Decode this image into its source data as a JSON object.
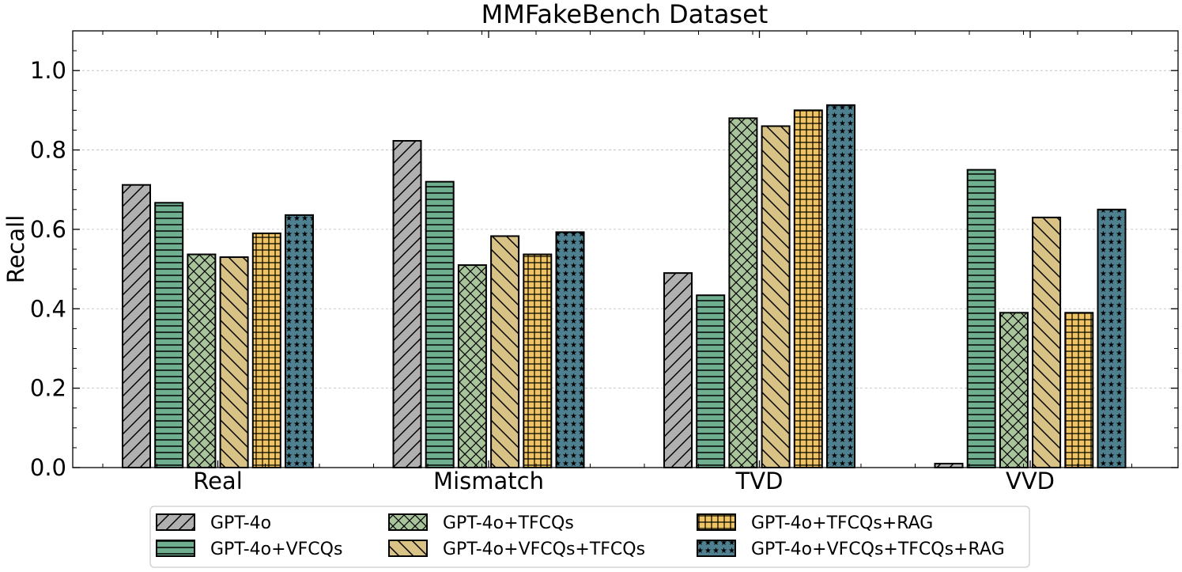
{
  "chart_data": {
    "type": "bar",
    "title": "MMFakeBench Dataset",
    "xlabel": "",
    "ylabel": "Recall",
    "ylim": [
      0,
      1.1
    ],
    "yticks": [
      "0.0",
      "0.2",
      "0.4",
      "0.6",
      "0.8",
      "1.0"
    ],
    "grid": "horizontal dashed",
    "legend_position": "bottom",
    "categories": [
      "Real",
      "Mismatch",
      "TVD",
      "VVD"
    ],
    "series": [
      {
        "name": "GPT-4o",
        "color": "#b0b0b0",
        "hatch": "diagonal-slash",
        "values": [
          0.712,
          0.823,
          0.49,
          0.01
        ]
      },
      {
        "name": "GPT-4o+VFCQs",
        "color": "#6fae8e",
        "hatch": "horizontal",
        "values": [
          0.667,
          0.72,
          0.434,
          0.75
        ]
      },
      {
        "name": "GPT-4o+TFCQs",
        "color": "#a8c49a",
        "hatch": "crosshatch",
        "values": [
          0.537,
          0.51,
          0.88,
          0.39
        ]
      },
      {
        "name": "GPT-4o+VFCQs+TFCQs",
        "color": "#d9c285",
        "hatch": "diagonal-backslash",
        "values": [
          0.53,
          0.583,
          0.86,
          0.63
        ]
      },
      {
        "name": "GPT-4o+TFCQs+RAG",
        "color": "#f0c463",
        "hatch": "grid",
        "values": [
          0.59,
          0.537,
          0.9,
          0.39
        ]
      },
      {
        "name": "GPT-4o+VFCQs+TFCQs+RAG",
        "color": "#4e8090",
        "hatch": "stars",
        "values": [
          0.636,
          0.593,
          0.913,
          0.65
        ]
      }
    ]
  }
}
